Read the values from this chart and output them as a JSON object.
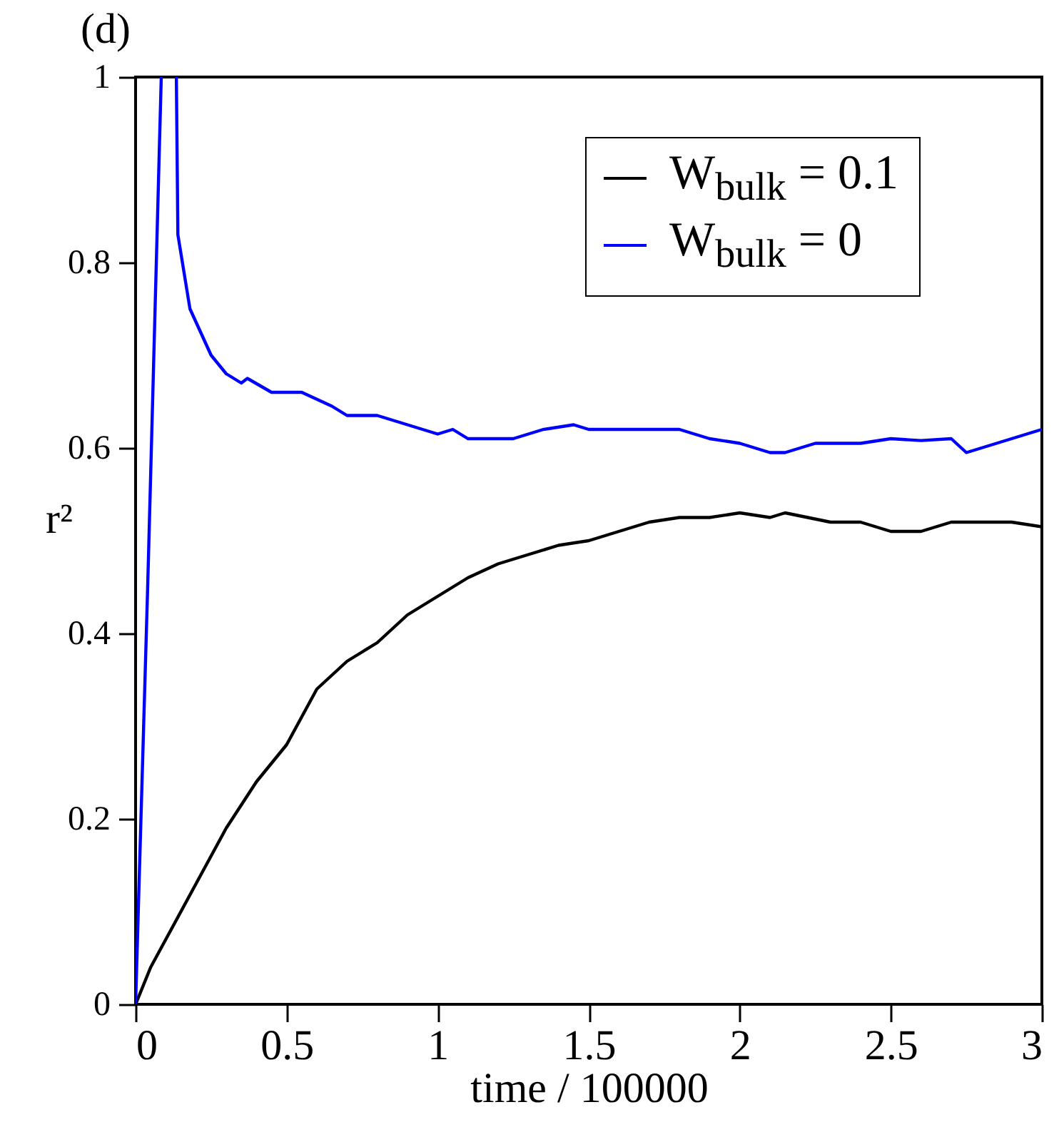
{
  "chart_data": {
    "type": "line",
    "title": "(d)",
    "xlabel": "time / 100000",
    "ylabel": "r²",
    "xlim": [
      0,
      3
    ],
    "ylim": [
      0,
      1
    ],
    "xticks": [
      0,
      0.5,
      1,
      1.5,
      2,
      2.5,
      3
    ],
    "yticks": [
      0,
      0.2,
      0.4,
      0.6,
      0.8,
      1
    ],
    "grid": false,
    "legend": "top right",
    "line_style": "solid",
    "series": [
      {
        "name": "W$_{bulk}$ = 0.1",
        "color": "#000000",
        "x": [
          0,
          0.05,
          0.1,
          0.2,
          0.3,
          0.4,
          0.5,
          0.55,
          0.6,
          0.7,
          0.8,
          0.9,
          1.0,
          1.1,
          1.2,
          1.3,
          1.4,
          1.5,
          1.6,
          1.7,
          1.8,
          1.9,
          2.0,
          2.1,
          2.15,
          2.3,
          2.4,
          2.5,
          2.6,
          2.7,
          2.8,
          2.9,
          3.0
        ],
        "values": [
          0,
          0.04,
          0.07,
          0.13,
          0.19,
          0.24,
          0.28,
          0.31,
          0.34,
          0.37,
          0.39,
          0.42,
          0.44,
          0.46,
          0.475,
          0.485,
          0.495,
          0.5,
          0.51,
          0.52,
          0.525,
          0.525,
          0.53,
          0.525,
          0.53,
          0.52,
          0.52,
          0.51,
          0.51,
          0.52,
          0.52,
          0.52,
          0.515
        ]
      },
      {
        "name": "W$_{bulk}$ = 0",
        "color": "#0000ff",
        "x": [
          0,
          0.04,
          0.085,
          0.1,
          0.135,
          0.14,
          0.18,
          0.25,
          0.3,
          0.35,
          0.37,
          0.45,
          0.55,
          0.65,
          0.7,
          0.8,
          0.9,
          1.0,
          1.05,
          1.1,
          1.25,
          1.35,
          1.45,
          1.5,
          1.7,
          1.8,
          1.9,
          2.0,
          2.1,
          2.15,
          2.25,
          2.4,
          2.5,
          2.6,
          2.7,
          2.75,
          2.85,
          2.95,
          3.0
        ],
        "values": [
          0,
          0.45,
          1,
          null,
          1,
          0.83,
          0.75,
          0.7,
          0.68,
          0.67,
          0.675,
          0.66,
          0.66,
          0.645,
          0.635,
          0.635,
          0.625,
          0.615,
          0.62,
          0.61,
          0.61,
          0.62,
          0.625,
          0.62,
          0.62,
          0.62,
          0.61,
          0.605,
          0.595,
          0.595,
          0.605,
          0.605,
          0.61,
          0.608,
          0.61,
          0.595,
          0.605,
          0.615,
          0.62
        ]
      }
    ]
  }
}
